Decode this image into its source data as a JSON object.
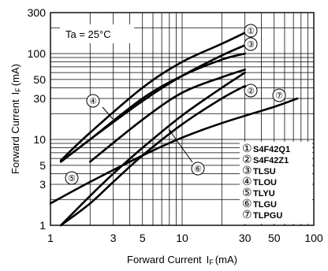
{
  "chart_data": {
    "type": "line",
    "x_scale": "log",
    "y_scale": "log",
    "xlim": [
      1,
      100
    ],
    "ylim": [
      1,
      300
    ],
    "xlabel": "Forward Current",
    "xlabel_symbol": "I",
    "xlabel_sub": "F",
    "xlabel_unit": "(mA)",
    "ylabel": "Forward Current",
    "ylabel_symbol": "I",
    "ylabel_sub": "F",
    "ylabel_unit": "(mA)",
    "annotation": "Ta = 25°C",
    "x_ticks": [
      1,
      3,
      5,
      10,
      30,
      50,
      100
    ],
    "y_ticks": [
      1,
      3,
      5,
      10,
      30,
      50,
      100,
      300
    ],
    "grid": true,
    "legend_position": "bottom-right",
    "series": [
      {
        "marker": "①",
        "name": "S4F42Q1",
        "x": [
          1.2,
          2,
          5,
          10,
          20,
          30
        ],
        "y": [
          5.7,
          12,
          40,
          80,
          130,
          175
        ]
      },
      {
        "marker": "②",
        "name": "S4F42Z1",
        "x": [
          1.2,
          2,
          3,
          5,
          10,
          20,
          30
        ],
        "y": [
          1,
          1.8,
          3.2,
          6.5,
          15,
          30,
          42
        ]
      },
      {
        "marker": "③",
        "name": "TLSU",
        "x": [
          1.2,
          2,
          5,
          10,
          20,
          30
        ],
        "y": [
          5.5,
          10,
          28,
          55,
          95,
          125
        ]
      },
      {
        "marker": "④",
        "name": "TLOU",
        "x": [
          1.2,
          2,
          5,
          10,
          20,
          30
        ],
        "y": [
          5.5,
          10,
          30,
          55,
          85,
          100
        ]
      },
      {
        "marker": "⑤",
        "name": "TLYU",
        "x": [
          1.2,
          2,
          3,
          5,
          10,
          20,
          30
        ],
        "y": [
          1,
          2.2,
          4,
          8,
          19,
          40,
          60
        ]
      },
      {
        "marker": "⑥",
        "name": "TLGU",
        "x": [
          2,
          5,
          10,
          20,
          30
        ],
        "y": [
          5.5,
          17,
          35,
          53,
          65
        ]
      },
      {
        "marker": "⑦",
        "name": "TLPGU",
        "x": [
          1,
          2,
          5,
          10,
          20,
          50,
          75
        ],
        "y": [
          1.8,
          3.2,
          6.5,
          10.5,
          15.5,
          24,
          30
        ]
      }
    ]
  }
}
